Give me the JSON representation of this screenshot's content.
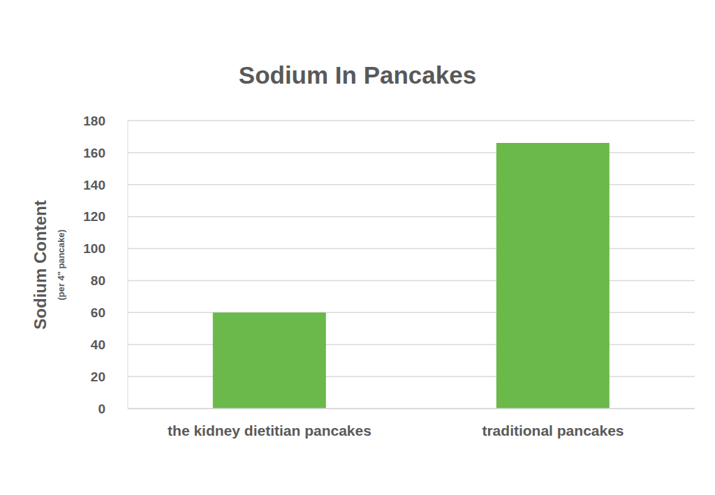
{
  "chart_data": {
    "type": "bar",
    "title": "Sodium In Pancakes",
    "ylabel": "Sodium Content",
    "ylabel_subtitle": "(per 4\" pancake)",
    "categories": [
      "the kidney dietitian pancakes",
      "traditional pancakes"
    ],
    "values": [
      60,
      166
    ],
    "color": "#6ab94a",
    "ylim": [
      0,
      180
    ],
    "yticks": [
      0,
      20,
      40,
      60,
      80,
      100,
      120,
      140,
      160,
      180
    ],
    "grid": true
  }
}
